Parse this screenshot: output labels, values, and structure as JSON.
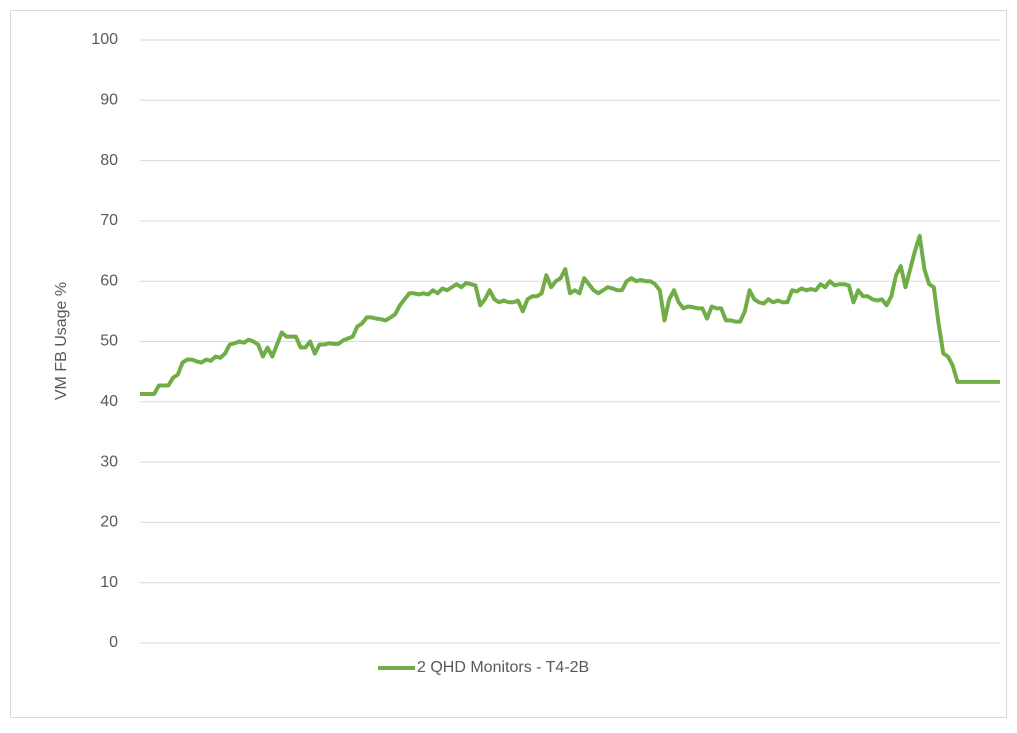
{
  "chart_data": {
    "type": "line",
    "y_label": "VM FB Usage %",
    "ylim": [
      0,
      100
    ],
    "yticks": [
      0,
      10,
      20,
      30,
      40,
      50,
      60,
      70,
      80,
      90,
      100
    ],
    "grid": true,
    "legend": "bottom",
    "series": [
      {
        "name": "2 QHD Monitors - T4-2B",
        "color": "#70ad47",
        "values": [
          41.3,
          41.3,
          41.3,
          41.3,
          42.7,
          42.7,
          42.7,
          44,
          44.5,
          46.5,
          47,
          47,
          46.7,
          46.5,
          47,
          46.8,
          47.5,
          47.3,
          48,
          49.5,
          49.7,
          50,
          49.8,
          50.3,
          50,
          49.5,
          47.5,
          49,
          47.5,
          49.5,
          51.5,
          50.8,
          50.8,
          50.8,
          49,
          49,
          50,
          48,
          49.5,
          49.5,
          49.7,
          49.6,
          49.6,
          50.2,
          50.5,
          50.8,
          52.5,
          53,
          54,
          54,
          53.8,
          53.7,
          53.5,
          54,
          54.5,
          56,
          57,
          58,
          58,
          57.8,
          58,
          57.8,
          58.5,
          58,
          58.8,
          58.5,
          59,
          59.5,
          59,
          59.7,
          59.5,
          59.3,
          56,
          57,
          58.5,
          57,
          56.5,
          56.8,
          56.5,
          56.5,
          56.8,
          55,
          57,
          57.5,
          57.5,
          58,
          61,
          59,
          60,
          60.5,
          62,
          58,
          58.5,
          58,
          60.5,
          59.5,
          58.5,
          58,
          58.5,
          59,
          58.8,
          58.5,
          58.5,
          60,
          60.5,
          60,
          60.2,
          60,
          60,
          59.5,
          58.5,
          53.5,
          57,
          58.5,
          56.5,
          55.5,
          55.8,
          55.7,
          55.5,
          55.5,
          53.8,
          55.8,
          55.5,
          55.5,
          53.5,
          53.5,
          53.3,
          53.3,
          55,
          58.5,
          57,
          56.5,
          56.3,
          57,
          56.5,
          56.8,
          56.5,
          56.5,
          58.5,
          58.3,
          58.8,
          58.5,
          58.7,
          58.5,
          59.5,
          59,
          60,
          59.3,
          59.5,
          59.5,
          59.3,
          56.5,
          58.5,
          57.5,
          57.5,
          57,
          56.8,
          57,
          56,
          57.5,
          61,
          62.5,
          59,
          62,
          65,
          67.5,
          62,
          59.5,
          59,
          53,
          48,
          47.5,
          46,
          43.3,
          43.3,
          43.3,
          43.3,
          43.3,
          43.3,
          43.3,
          43.3,
          43.3,
          43.3
        ]
      }
    ]
  }
}
